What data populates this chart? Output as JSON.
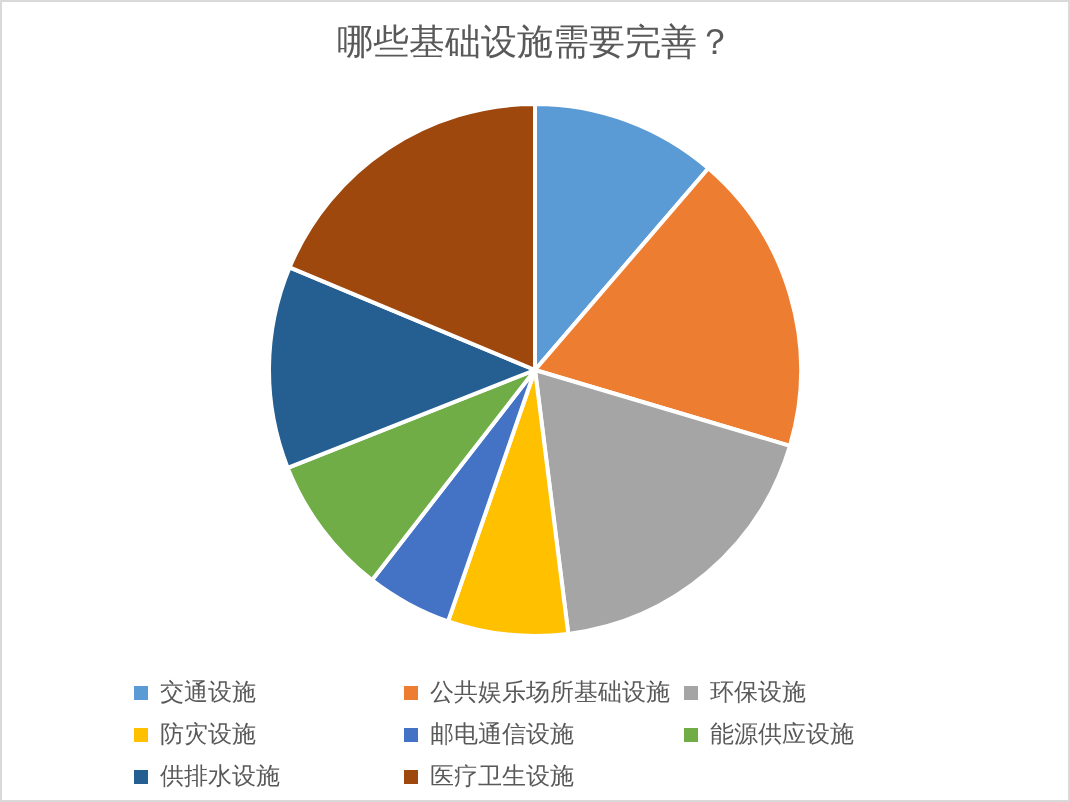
{
  "chart_data": {
    "type": "pie",
    "title": "哪些基础设施需要完善？",
    "categories": [
      "交通设施",
      "公共娱乐场所基础设施",
      "环保设施",
      "防灾设施",
      "邮电通信设施",
      "能源供应设施",
      "供排水设施",
      "医疗卫生设施"
    ],
    "values": [
      11.3,
      18.3,
      18.4,
      7.3,
      5.2,
      8.5,
      12.3,
      18.7
    ],
    "colors": [
      "#5b9bd5",
      "#ed7d31",
      "#a5a5a5",
      "#ffc000",
      "#4472c4",
      "#70ad47",
      "#255e91",
      "#9e480e"
    ],
    "legend": "bottom"
  }
}
